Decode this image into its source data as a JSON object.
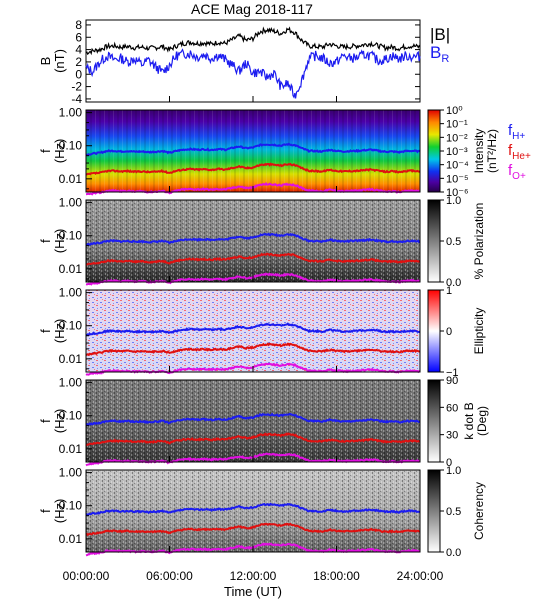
{
  "chart_data": [
    {
      "type": "line",
      "title": "ACE Mag 2018-117",
      "ylabel": "B",
      "yunit": "(nT)",
      "ylim": [
        -4.5,
        8.8
      ],
      "yticks": [
        "-4",
        "-2",
        "0",
        "2",
        "4",
        "6",
        "8"
      ],
      "xlim": [
        0,
        24
      ],
      "xticks": [
        "00:00:00",
        "06:00:00",
        "12:00:00",
        "18:00:00",
        "24:00:00"
      ],
      "xlabel": "Time (UT)",
      "series": [
        {
          "name": "|B|",
          "color": "#000000",
          "x": [
            0,
            0.5,
            1,
            1.5,
            2,
            2.5,
            3,
            3.5,
            4,
            4.5,
            5,
            5.5,
            6,
            6.5,
            7,
            7.5,
            8,
            8.5,
            9,
            9.5,
            10,
            10.5,
            11,
            11.5,
            12,
            12.5,
            13,
            13.5,
            14,
            14.5,
            15,
            15.5,
            16,
            16.5,
            17,
            17.5,
            18,
            18.5,
            19,
            19.5,
            20,
            20.5,
            21,
            21.5,
            22,
            22.5,
            23,
            23.5,
            24
          ],
          "values": [
            3.5,
            3.8,
            4.0,
            4.5,
            4.6,
            4.4,
            4.5,
            4.3,
            4.4,
            4.2,
            4.3,
            4.5,
            4.0,
            4.6,
            5.0,
            5.2,
            5.0,
            5.1,
            4.9,
            5.2,
            5.0,
            5.6,
            6.2,
            5.5,
            5.8,
            6.9,
            7.2,
            7.0,
            6.6,
            7.3,
            6.8,
            5.5,
            4.6,
            4.5,
            4.4,
            4.9,
            4.6,
            4.4,
            4.5,
            4.6,
            4.8,
            5.0,
            4.6,
            4.3,
            4.4,
            4.2,
            4.5,
            4.6,
            4.4
          ]
        },
        {
          "name": "BR",
          "color": "#1c1cf0",
          "x": [
            0,
            0.5,
            1,
            1.5,
            2,
            2.5,
            3,
            3.5,
            4,
            4.5,
            5,
            5.5,
            6,
            6.5,
            7,
            7.5,
            8,
            8.5,
            9,
            9.5,
            10,
            10.5,
            11,
            11.5,
            12,
            12.5,
            13,
            13.5,
            14,
            14.5,
            15,
            15.5,
            16,
            16.5,
            17,
            17.5,
            18,
            18.5,
            19,
            19.5,
            20,
            20.5,
            21,
            21.5,
            22,
            22.5,
            23,
            23.5,
            24
          ],
          "values": [
            1.0,
            0.5,
            2.0,
            3.0,
            2.4,
            2.6,
            2.0,
            2.5,
            1.6,
            2.3,
            1.2,
            0.3,
            1.5,
            3.0,
            3.3,
            3.4,
            2.8,
            3.2,
            2.6,
            3.1,
            2.4,
            1.5,
            0.5,
            1.8,
            0.2,
            0.4,
            -0.5,
            0.2,
            -2.0,
            -1.5,
            -3.5,
            -1.0,
            2.5,
            3.0,
            2.6,
            1.8,
            2.0,
            3.0,
            2.6,
            2.7,
            3.2,
            3.0,
            2.2,
            2.4,
            3.0,
            2.5,
            3.0,
            2.8,
            2.9
          ]
        }
      ]
    },
    {
      "type": "heatmap",
      "ylabel": "f",
      "yunit": "(Hz)",
      "ylim": [
        0.004,
        1.2
      ],
      "yscale": "log",
      "yticks": [
        "1.00",
        "0.10",
        "0.01"
      ],
      "colorbar": {
        "label": "Intensity",
        "unit": "(nT²/Hz)",
        "ticks": [
          "10⁰",
          "10⁻¹",
          "10⁻²",
          "10⁻³",
          "10⁻⁴",
          "10⁻⁵",
          "10⁻⁶"
        ],
        "colormap": "rainbow"
      },
      "legend": [
        {
          "main": "f",
          "sub": "H+",
          "color": "#1c1cf0"
        },
        {
          "main": "f",
          "sub": "He+",
          "color": "#e01010"
        },
        {
          "main": "f",
          "sub": "O+",
          "color": "#e010e0"
        }
      ]
    },
    {
      "type": "heatmap",
      "ylabel": "f",
      "yunit": "(Hz)",
      "ylim": [
        0.004,
        1.2
      ],
      "yscale": "log",
      "yticks": [
        "1.00",
        "0.10",
        "0.01"
      ],
      "colorbar": {
        "label": "% Polarization",
        "ticks": [
          "1.0",
          "0.5",
          "0.0"
        ],
        "colormap": "gray"
      }
    },
    {
      "type": "heatmap",
      "ylabel": "f",
      "yunit": "(Hz)",
      "ylim": [
        0.004,
        1.2
      ],
      "yscale": "log",
      "yticks": [
        "1.00",
        "0.10",
        "0.01"
      ],
      "colorbar": {
        "label": "Ellipticity",
        "ticks": [
          "1",
          "0",
          "−1"
        ],
        "colormap": "bwr"
      }
    },
    {
      "type": "heatmap",
      "ylabel": "f",
      "yunit": "(Hz)",
      "ylim": [
        0.004,
        1.2
      ],
      "yscale": "log",
      "yticks": [
        "1.00",
        "0.10",
        "0.01"
      ],
      "colorbar": {
        "label": "k dot B",
        "unit": "(Deg)",
        "ticks": [
          "90",
          "60",
          "30",
          "0"
        ],
        "colormap": "gray"
      }
    },
    {
      "type": "heatmap",
      "ylabel": "f",
      "yunit": "(Hz)",
      "ylim": [
        0.004,
        1.2
      ],
      "yscale": "log",
      "yticks": [
        "1.00",
        "0.10",
        "0.01"
      ],
      "colorbar": {
        "label": "Coherency",
        "ticks": [
          "1.0",
          "0.5",
          "0.0"
        ],
        "colormap": "gray"
      }
    }
  ],
  "gyro_lines": {
    "x": [
      0,
      0.5,
      1,
      1.5,
      2,
      2.5,
      3,
      3.5,
      4,
      4.5,
      5,
      5.5,
      6,
      6.5,
      7,
      7.5,
      8,
      8.5,
      9,
      9.5,
      10,
      10.5,
      11,
      11.5,
      12,
      12.5,
      13,
      13.5,
      14,
      14.5,
      15,
      15.5,
      16,
      16.5,
      17,
      17.5,
      18,
      18.5,
      19,
      19.5,
      20,
      20.5,
      21,
      21.5,
      22,
      22.5,
      23,
      23.5,
      24
    ],
    "fH_hz": [
      0.053,
      0.058,
      0.061,
      0.069,
      0.07,
      0.067,
      0.069,
      0.066,
      0.067,
      0.064,
      0.066,
      0.069,
      0.061,
      0.07,
      0.076,
      0.079,
      0.076,
      0.078,
      0.075,
      0.079,
      0.076,
      0.085,
      0.095,
      0.084,
      0.088,
      0.105,
      0.11,
      0.107,
      0.101,
      0.111,
      0.104,
      0.084,
      0.07,
      0.069,
      0.067,
      0.075,
      0.07,
      0.067,
      0.069,
      0.07,
      0.073,
      0.076,
      0.07,
      0.066,
      0.067,
      0.064,
      0.069,
      0.07,
      0.067
    ],
    "fHe_hz": [
      0.0133,
      0.0145,
      0.0152,
      0.0172,
      0.0175,
      0.0168,
      0.0172,
      0.0164,
      0.0168,
      0.016,
      0.0164,
      0.0172,
      0.0152,
      0.0175,
      0.019,
      0.0198,
      0.019,
      0.0195,
      0.0187,
      0.0198,
      0.019,
      0.0213,
      0.0236,
      0.021,
      0.0221,
      0.0263,
      0.0274,
      0.0267,
      0.0252,
      0.0278,
      0.0259,
      0.021,
      0.0175,
      0.0172,
      0.0168,
      0.0187,
      0.0175,
      0.0168,
      0.0172,
      0.0175,
      0.0183,
      0.019,
      0.0175,
      0.0164,
      0.0168,
      0.016,
      0.0172,
      0.0175,
      0.0168
    ],
    "fO_hz": [
      0.0033,
      0.0036,
      0.0038,
      0.0043,
      0.0044,
      0.0042,
      0.0043,
      0.0041,
      0.0042,
      0.004,
      0.0041,
      0.0043,
      0.0038,
      0.0044,
      0.0048,
      0.0049,
      0.0048,
      0.0049,
      0.0047,
      0.0049,
      0.0048,
      0.0053,
      0.0059,
      0.0053,
      0.0055,
      0.0066,
      0.0069,
      0.0067,
      0.0063,
      0.0069,
      0.0065,
      0.0053,
      0.0044,
      0.0043,
      0.0042,
      0.0047,
      0.0044,
      0.0042,
      0.0043,
      0.0044,
      0.0046,
      0.0048,
      0.0044,
      0.0041,
      0.0042,
      0.004,
      0.0043,
      0.0044,
      0.0042
    ]
  },
  "legend_top": {
    "b_total": "|B|",
    "br_main": "B",
    "br_sub": "R"
  },
  "colors": {
    "bt": "#000000",
    "br": "#1c1cf0",
    "fH": "#1c1cf0",
    "fHe": "#e01010",
    "fO": "#e010e0"
  }
}
